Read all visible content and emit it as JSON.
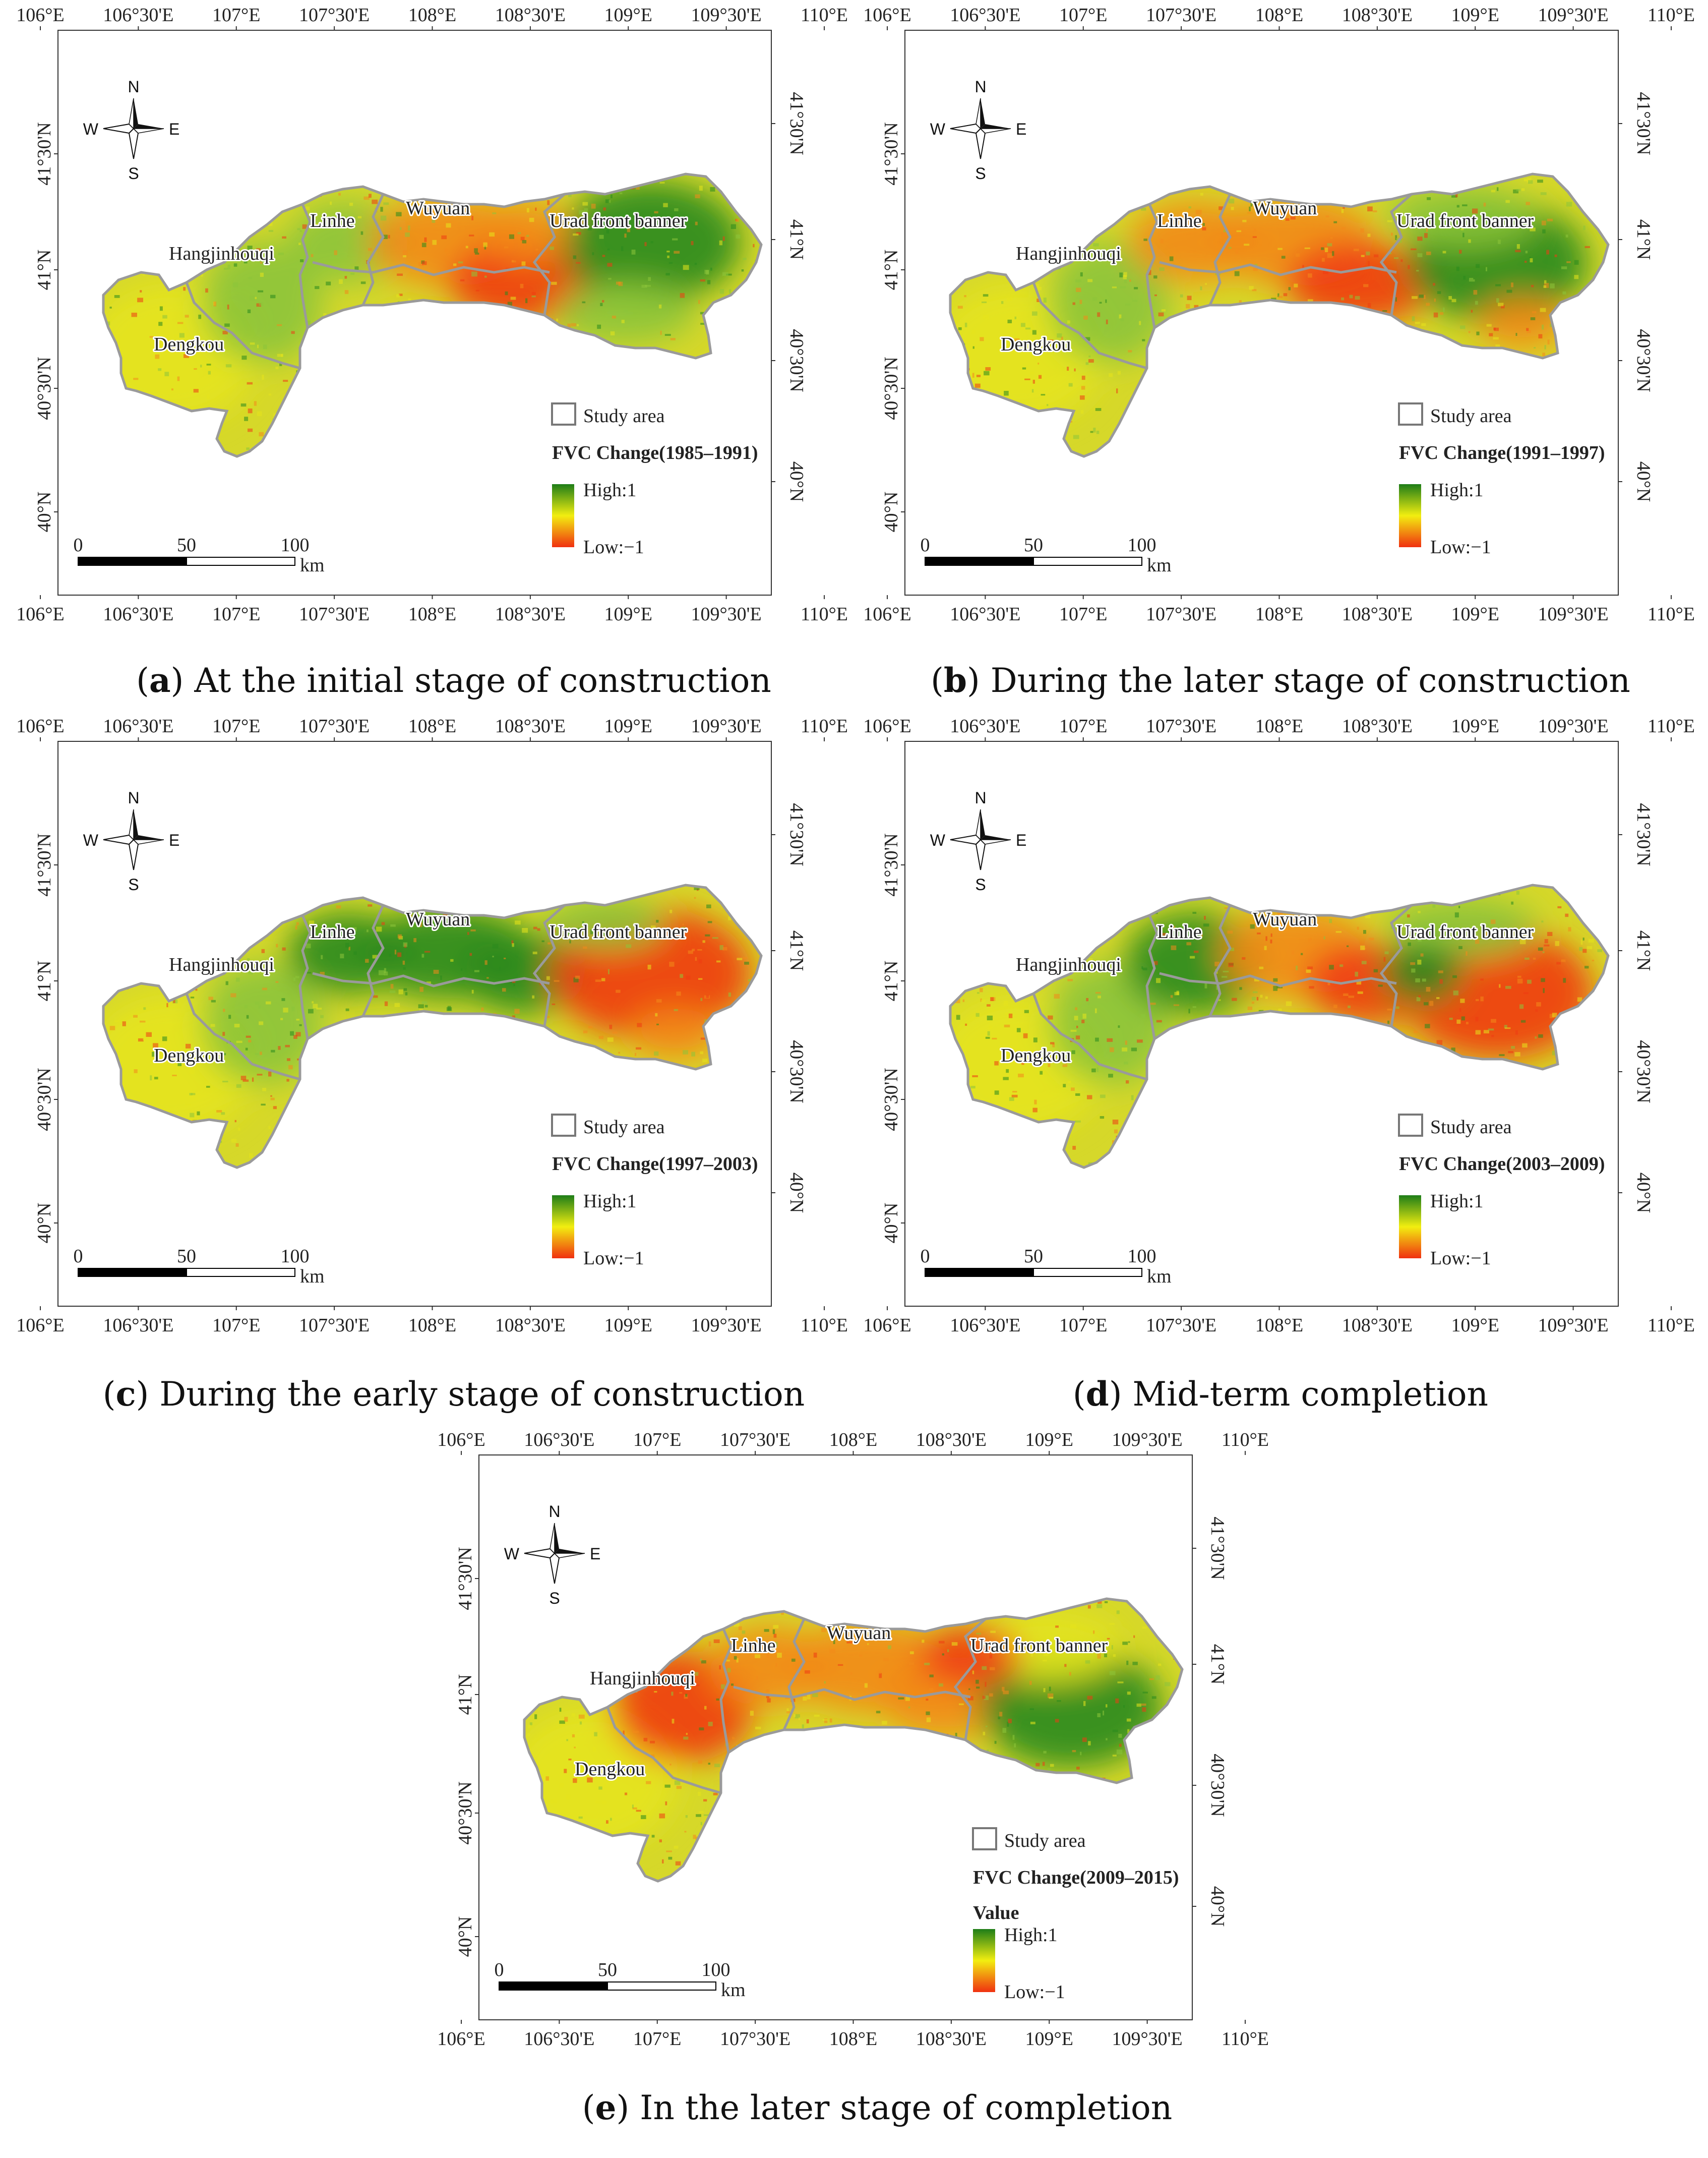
{
  "compass": {
    "n": "N",
    "s": "S",
    "e": "E",
    "w": "W"
  },
  "x_ticks": [
    "106°E",
    "106°30'E",
    "107°E",
    "107°30'E",
    "108°E",
    "108°30'E",
    "109°E",
    "109°30'E",
    "110°E"
  ],
  "y_ticks": [
    "41°30'N",
    "41°N",
    "40°30'N",
    "40°N"
  ],
  "scale": {
    "zero": "0",
    "mid": "50",
    "end": "100",
    "unit": "km"
  },
  "regions": [
    "Hangjinhouqi",
    "Linhe",
    "Wuyuan",
    "Urad front banner",
    "Dengkou"
  ],
  "legend": {
    "study_area": "Study area",
    "high": "High:1",
    "low": "Low:−1",
    "value": "Value"
  },
  "colors": {
    "high": "#1e7d18",
    "mid": "#f2ee10",
    "low": "#f03010",
    "boundary": "#9a9a9a"
  },
  "panels": [
    {
      "letter": "a",
      "caption": " At the initial stage of construction",
      "title": "FVC Change(1985–1991)"
    },
    {
      "letter": "b",
      "caption": " During the later stage of construction",
      "title": "FVC Change(1991–1997)"
    },
    {
      "letter": "c",
      "caption": " During the early stage of construction",
      "title": "FVC Change(1997–2003)"
    },
    {
      "letter": "d",
      "caption": " Mid-term completion",
      "title": "FVC Change(2003–2009)"
    },
    {
      "letter": "e",
      "caption": " In the later stage of completion",
      "title": "FVC Change(2009–2015)"
    }
  ]
}
